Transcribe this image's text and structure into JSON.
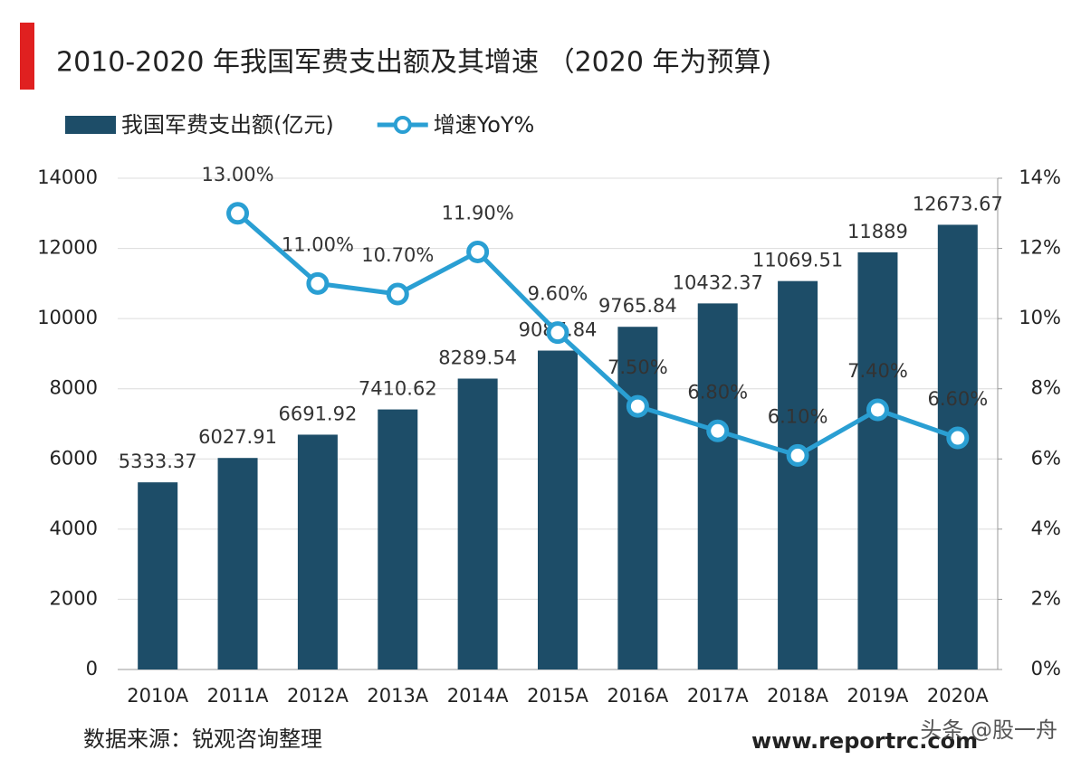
{
  "chart_data": {
    "type": "combo",
    "title": "2010-2020 年我国军费支出额及其增速 （2020 年为预算)",
    "source": "数据来源：锐观咨询整理",
    "watermark": [
      "www.reportrc.com",
      "头条 @股一舟"
    ],
    "categories": [
      "2010A",
      "2011A",
      "2012A",
      "2013A",
      "2014A",
      "2015A",
      "2016A",
      "2017A",
      "2018A",
      "2019A",
      "2020A"
    ],
    "series": [
      {
        "name": "我国军费支出额(亿元)",
        "type": "bar",
        "color": "#1d4d68",
        "values": [
          5333.37,
          6027.91,
          6691.92,
          7410.62,
          8289.54,
          9087.84,
          9765.84,
          10432.37,
          11069.51,
          11889,
          12673.67
        ]
      },
      {
        "name": "增速YoY%",
        "type": "line",
        "axis": "y2",
        "color": "#2a9fd3",
        "values": [
          null,
          13.0,
          11.0,
          10.7,
          11.9,
          9.6,
          7.5,
          6.8,
          6.1,
          7.4,
          6.6
        ],
        "value_labels": [
          null,
          "13.00%",
          "11.00%",
          "10.70%",
          "11.90%",
          "9.60%",
          "7.50%",
          "6.80%",
          "6.10%",
          "7.40%",
          "6.60%"
        ]
      }
    ],
    "ylim": [
      0,
      14000
    ],
    "yticks": [
      0,
      2000,
      4000,
      6000,
      8000,
      10000,
      12000,
      14000
    ],
    "y2lim": [
      0,
      14
    ],
    "y2ticks": [
      {
        "value": 0,
        "label": "0%"
      },
      {
        "value": 2,
        "label": "2%"
      },
      {
        "value": 4,
        "label": "4%"
      },
      {
        "value": 6,
        "label": "6%"
      },
      {
        "value": 8,
        "label": "8%"
      },
      {
        "value": 10,
        "label": "10%"
      },
      {
        "value": 12,
        "label": "12%"
      },
      {
        "value": 14,
        "label": "14%"
      }
    ],
    "grid": true
  }
}
